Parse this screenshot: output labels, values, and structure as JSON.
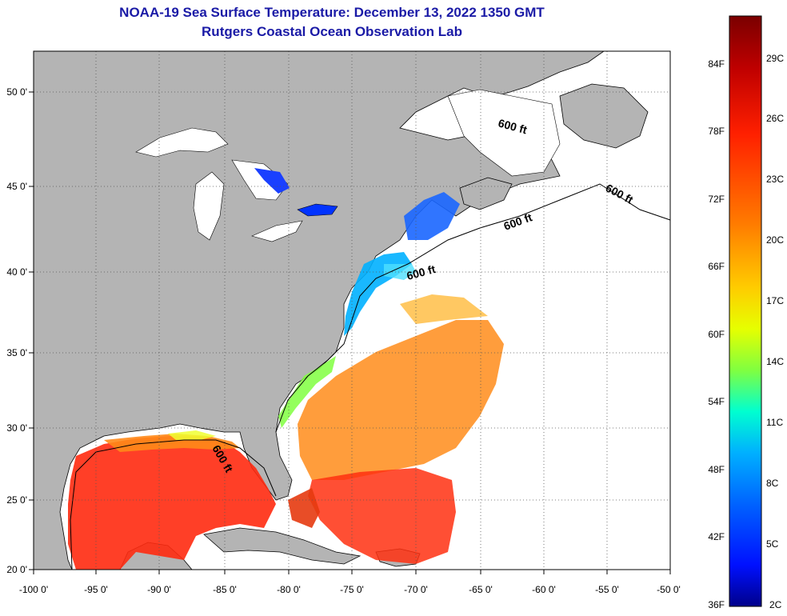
{
  "header": {
    "title": "NOAA-19 Sea Surface Temperature:  December 13, 2022 1350 GMT",
    "subtitle": "Rutgers Coastal Ocean Observation Lab"
  },
  "map": {
    "lon_ticks": [
      "-100 0'",
      "-95 0'",
      "-90 0'",
      "-85 0'",
      "-80 0'",
      "-75 0'",
      "-70 0'",
      "-65 0'",
      "-60 0'",
      "-55 0'",
      "-50 0'"
    ],
    "lat_ticks": [
      "50 0'",
      "45 0'",
      "40 0'",
      "35 0'",
      "30 0'",
      "25 0'",
      "20 0'"
    ],
    "contour_label": "600 ft",
    "land_color": "#b4b4b4",
    "nodata_color": "#ffffff"
  },
  "colorbar": {
    "f_labels": [
      "84F",
      "78F",
      "72F",
      "66F",
      "60F",
      "54F",
      "48F",
      "42F",
      "36F"
    ],
    "c_labels": [
      "29C",
      "26C",
      "23C",
      "20C",
      "17C",
      "14C",
      "11C",
      "8C",
      "5C",
      "2C"
    ],
    "colors": [
      "#7a0000",
      "#c00000",
      "#ff2000",
      "#ff7a00",
      "#ffcc00",
      "#e6ff00",
      "#80ff40",
      "#00ffd0",
      "#00b0ff",
      "#0060ff",
      "#0010ff",
      "#00008a"
    ]
  }
}
